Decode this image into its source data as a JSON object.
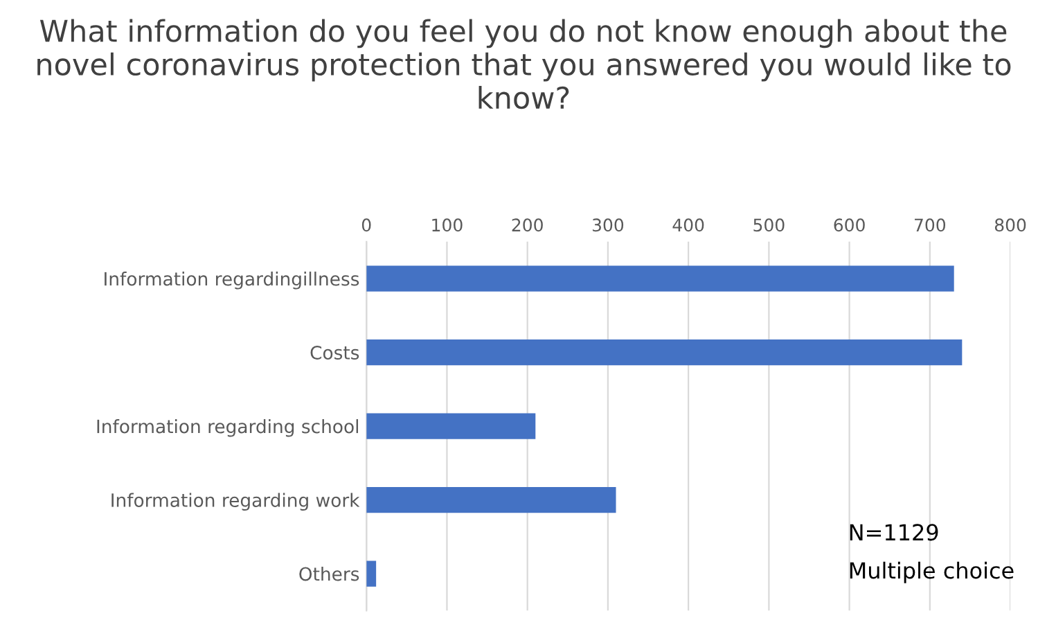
{
  "chart_data": {
    "type": "bar",
    "orientation": "horizontal",
    "title": "What information do you feel you do not know enough about the novel coronavirus protection that you answered you would like to know?",
    "categories": [
      "Information regardingillness",
      "Costs",
      "Information regarding school",
      "Information regarding work",
      "Others"
    ],
    "values": [
      730,
      740,
      210,
      310,
      12
    ],
    "color": "#4472c4",
    "xlim": [
      0,
      800
    ],
    "xticks": [
      0,
      100,
      200,
      300,
      400,
      500,
      600,
      700,
      800
    ],
    "grid": "x",
    "annotations": [
      "N=1129",
      "Multiple choice"
    ]
  }
}
